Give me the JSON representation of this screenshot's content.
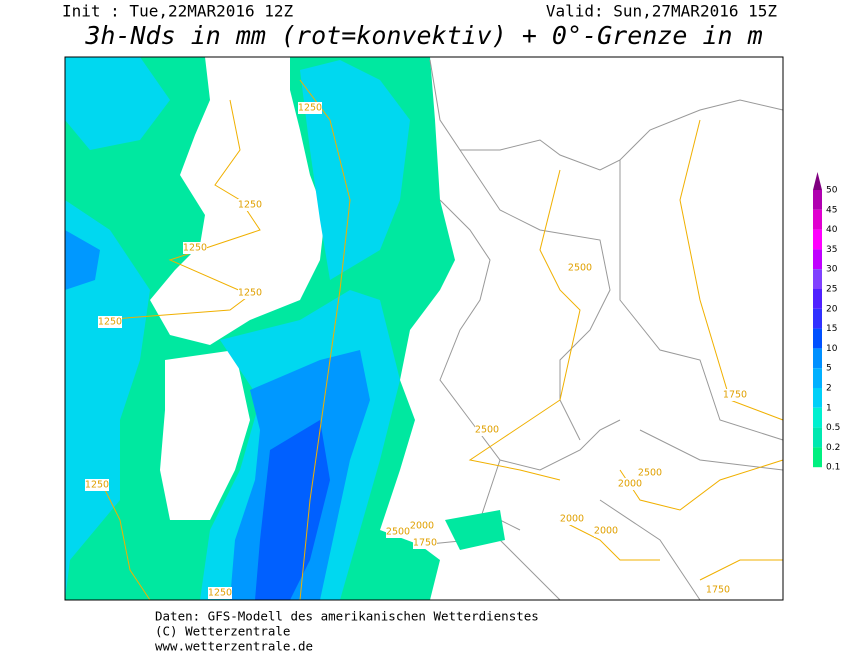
{
  "header": {
    "init": "Init : Tue,22MAR2016 12Z",
    "valid": "Valid: Sun,27MAR2016 15Z",
    "title": "3h-Nds in mm (rot=konvektiv) + 0°-Grenze in m"
  },
  "legend": {
    "labels": [
      50,
      45,
      40,
      35,
      30,
      25,
      20,
      15,
      10,
      5,
      2,
      1,
      0.5,
      0.2,
      0.1
    ]
  },
  "contour_labels": [
    "1250",
    "1250",
    "1250",
    "1250",
    "1250",
    "1250",
    "1250",
    "2500",
    "2500",
    "2500",
    "2500",
    "1750",
    "1750",
    "1750",
    "2000",
    "2000",
    "2000",
    "2000"
  ],
  "footer": [
    "Daten: GFS-Modell des amerikanischen Wetterdienstes",
    "(C) Wetterzentrale",
    "www.wetterzentrale.de"
  ]
}
